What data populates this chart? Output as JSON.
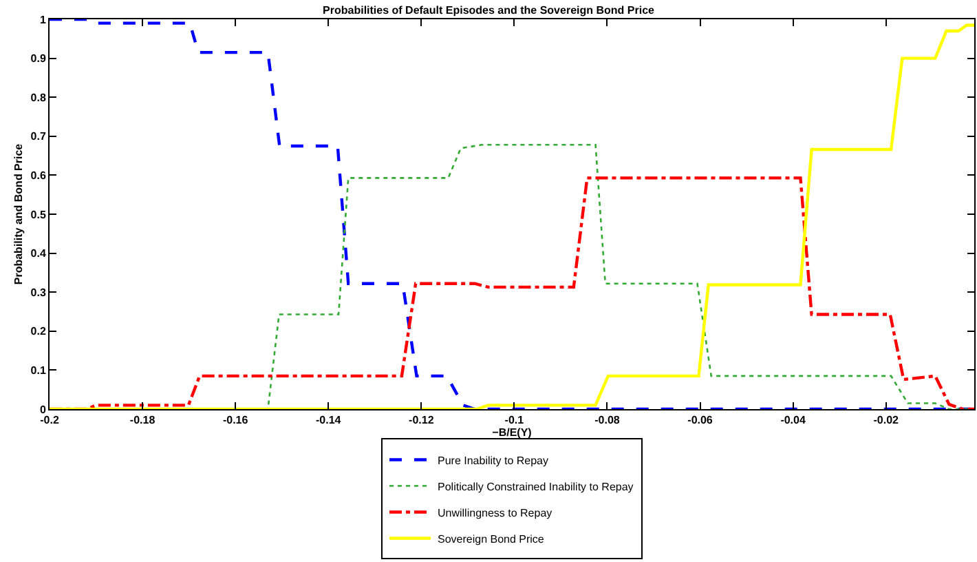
{
  "chart_data": {
    "type": "line",
    "title": "Probabilities of Default Episodes and the Sovereign Bond Price",
    "xlabel": "−B/E(Y)",
    "ylabel": "Probability and Bond Price",
    "xlim": [
      -0.2,
      -0.001
    ],
    "ylim": [
      0,
      1
    ],
    "xticks": [
      -0.2,
      -0.18,
      -0.16,
      -0.14,
      -0.12,
      -0.1,
      -0.08,
      -0.06,
      -0.04,
      -0.02
    ],
    "yticks": [
      0,
      0.1,
      0.2,
      0.3,
      0.4,
      0.5,
      0.6,
      0.7,
      0.8,
      0.9,
      1
    ],
    "legend": "bottom",
    "marker": "none",
    "series": [
      {
        "name": "Pure Inability to Repay",
        "color": "#0000ff",
        "line_style": "dashed",
        "x": [
          -0.2,
          -0.192,
          -0.19,
          -0.1698,
          -0.168,
          -0.153,
          -0.1505,
          -0.138,
          -0.1357,
          -0.124,
          -0.121,
          -0.1145,
          -0.111,
          -0.1085,
          -0.001
        ],
        "values": [
          1,
          1,
          0.99,
          0.99,
          0.915,
          0.915,
          0.675,
          0.675,
          0.322,
          0.322,
          0.085,
          0.085,
          0.01,
          0,
          0
        ]
      },
      {
        "name": "Politically Constrained Inability to Repay",
        "color": "#33aa33",
        "line_style": "dotted",
        "x": [
          -0.2,
          -0.153,
          -0.1506,
          -0.1378,
          -0.1357,
          -0.1142,
          -0.1115,
          -0.107,
          -0.0825,
          -0.0804,
          -0.0606,
          -0.0576,
          -0.0189,
          -0.0153,
          -0.0094,
          -0.0064,
          -0.001
        ],
        "values": [
          0,
          0,
          0.243,
          0.243,
          0.593,
          0.593,
          0.669,
          0.678,
          0.678,
          0.322,
          0.322,
          0.085,
          0.085,
          0.015,
          0.015,
          0,
          0
        ]
      },
      {
        "name": "Unwillingness to Repay",
        "color": "#ff0000",
        "line_style": "dashdot",
        "x": [
          -0.2,
          -0.192,
          -0.19,
          -0.1701,
          -0.1677,
          -0.1242,
          -0.1212,
          -0.1085,
          -0.1056,
          -0.0872,
          -0.0843,
          -0.0384,
          -0.036,
          -0.0191,
          -0.0162,
          -0.0094,
          -0.0064,
          -0.0035,
          -0.001
        ],
        "values": [
          0,
          0,
          0.01,
          0.01,
          0.085,
          0.085,
          0.322,
          0.322,
          0.313,
          0.313,
          0.593,
          0.593,
          0.243,
          0.243,
          0.076,
          0.085,
          0.012,
          0,
          0
        ]
      },
      {
        "name": "Sovereign Bond Price",
        "color": "#ffff00",
        "line_style": "solid",
        "x": [
          -0.2,
          -0.108,
          -0.1056,
          -0.0825,
          -0.0798,
          -0.0603,
          -0.0582,
          -0.0384,
          -0.036,
          -0.0189,
          -0.0165,
          -0.0094,
          -0.007,
          -0.0044,
          -0.0026,
          -0.001
        ],
        "values": [
          0,
          0,
          0.01,
          0.01,
          0.085,
          0.085,
          0.319,
          0.319,
          0.666,
          0.666,
          0.9,
          0.9,
          0.97,
          0.97,
          0.985,
          0.985
        ]
      }
    ]
  }
}
